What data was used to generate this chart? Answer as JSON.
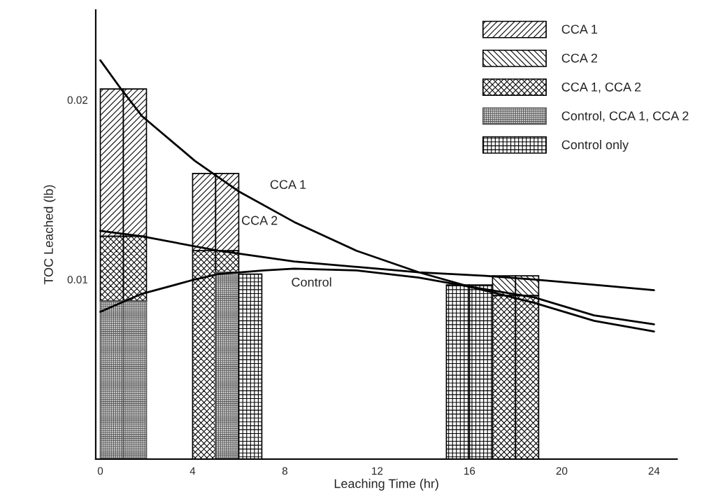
{
  "chart_data": {
    "type": "bar",
    "xlabel": "Leaching Time (hr)",
    "ylabel": "TOC Leached (lb)",
    "xlim": [
      -0.2,
      25
    ],
    "xticks": [
      0,
      4,
      8,
      12,
      16,
      20,
      24
    ],
    "ylim": [
      0,
      0.025
    ],
    "yticks": [
      0.01,
      0.02
    ],
    "grid": false,
    "legend": "top right",
    "series": [
      {
        "name": "CCA 1",
        "color": "#000000",
        "x": [
          0.5,
          1.5,
          4.5,
          5.5
        ],
        "base": [
          0.0124,
          0.0124,
          0.0116,
          0.0116
        ],
        "values": [
          0.0082,
          0.0082,
          0.0043,
          0.0043
        ]
      },
      {
        "name": "CCA 2",
        "color": "#000000",
        "x": [
          17.5,
          18.5
        ],
        "base": [
          0.0091,
          0.0091
        ],
        "values": [
          0.0011,
          0.0011
        ]
      },
      {
        "name": "CCA 1, CCA 2",
        "color": "#000000",
        "x": [
          0.5,
          1.5,
          4.5,
          5.5,
          17.5,
          18.5
        ],
        "base": [
          0.0088,
          0.0088,
          0,
          0.0104,
          0,
          0
        ],
        "values": [
          0.0036,
          0.0036,
          0.0116,
          0.0012,
          0.0091,
          0.0091
        ]
      },
      {
        "name": "Control, CCA 1, CCA 2",
        "color": "#555555",
        "x": [
          0.5,
          1.5,
          5.5
        ],
        "base": [
          0,
          0,
          0
        ],
        "values": [
          0.0088,
          0.0088,
          0.0104
        ]
      },
      {
        "name": "Control only",
        "color": "#000000",
        "x": [
          6.5,
          15.5,
          16.5
        ],
        "base": [
          0,
          0,
          0
        ],
        "values": [
          0.0103,
          0.0097,
          0.0097
        ]
      },
      {
        "type": "line",
        "color": "#000000",
        "x": [
          0,
          0.9,
          1.8,
          4.1,
          6,
          8.4,
          11.1,
          13.8,
          16,
          18.8,
          21.4,
          24
        ],
        "values": [
          0.0222,
          0.0206,
          0.0191,
          0.0166,
          0.0149,
          0.0132,
          0.0116,
          0.0104,
          0.0096,
          0.0087,
          0.0077,
          0.0071
        ]
      },
      {
        "type": "line",
        "color": "#000000",
        "x": [
          0,
          1.8,
          5.1,
          8.4,
          13.8,
          16.7,
          18.8,
          21.4,
          24
        ],
        "values": [
          0.0127,
          0.0124,
          0.0116,
          0.011,
          0.0104,
          0.0102,
          0.01,
          0.0097,
          0.0094
        ]
      },
      {
        "type": "line",
        "color": "#000000",
        "x": [
          0,
          1.8,
          4.1,
          5.1,
          7.1,
          8.4,
          11.1,
          13.8,
          16,
          18.8,
          21.4,
          24
        ],
        "values": [
          0.0082,
          0.0092,
          0.01,
          0.0103,
          0.0105,
          0.0106,
          0.0105,
          0.0101,
          0.0096,
          0.009,
          0.008,
          0.0075
        ]
      }
    ],
    "annotations": [
      {
        "text": "CCA 1",
        "x": 6,
        "y": 0.0149
      },
      {
        "text": "CCA 2",
        "x": 5.1,
        "y": 0.0116
      },
      {
        "text": "Control",
        "x": 8.4,
        "y": 0.0106
      }
    ],
    "line_style": "solid",
    "marker": "none"
  }
}
